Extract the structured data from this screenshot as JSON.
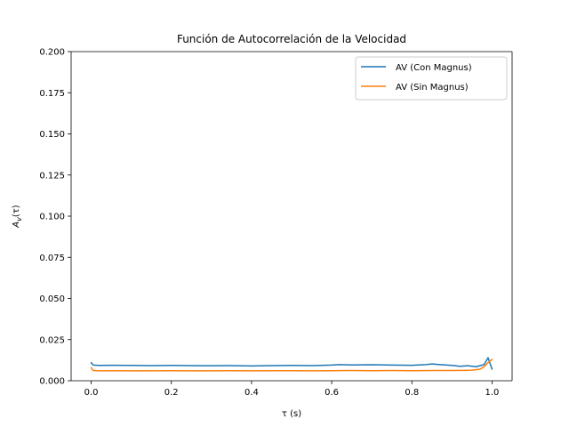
{
  "chart_data": {
    "type": "line",
    "title": "Función de Autocorrelación de la Velocidad",
    "xlabel": "τ (s)",
    "ylabel_main": "A",
    "ylabel_sub": "v",
    "ylabel_arg": "(τ)",
    "xlim": [
      -0.05,
      1.05
    ],
    "ylim": [
      0.0,
      0.2
    ],
    "xticks": [
      0.0,
      0.2,
      0.4,
      0.6,
      0.8,
      1.0
    ],
    "xtick_labels": [
      "0.0",
      "0.2",
      "0.4",
      "0.6",
      "0.8",
      "1.0"
    ],
    "yticks": [
      0.0,
      0.025,
      0.05,
      0.075,
      0.1,
      0.125,
      0.15,
      0.175,
      0.2
    ],
    "ytick_labels": [
      "0.000",
      "0.025",
      "0.050",
      "0.075",
      "0.100",
      "0.125",
      "0.150",
      "0.175",
      "0.200"
    ],
    "grid": false,
    "legend_position": "top-right",
    "series": [
      {
        "name": "AV (Con Magnus)",
        "color": "#1f77b4",
        "x": [
          0.0,
          0.005,
          0.02,
          0.05,
          0.1,
          0.15,
          0.2,
          0.25,
          0.3,
          0.35,
          0.4,
          0.45,
          0.5,
          0.55,
          0.6,
          0.62,
          0.65,
          0.7,
          0.75,
          0.8,
          0.83,
          0.85,
          0.87,
          0.9,
          0.92,
          0.94,
          0.96,
          0.98,
          0.99,
          1.0
        ],
        "y": [
          0.011,
          0.0095,
          0.0093,
          0.0094,
          0.0093,
          0.0092,
          0.0093,
          0.0092,
          0.0091,
          0.0092,
          0.009,
          0.0092,
          0.0093,
          0.0092,
          0.0095,
          0.0098,
          0.0096,
          0.0097,
          0.0095,
          0.0094,
          0.0097,
          0.0102,
          0.0098,
          0.0093,
          0.0088,
          0.0091,
          0.0085,
          0.0098,
          0.014,
          0.007
        ]
      },
      {
        "name": "AV (Sin Magnus)",
        "color": "#ff7f0e",
        "x": [
          0.0,
          0.005,
          0.02,
          0.05,
          0.1,
          0.15,
          0.2,
          0.25,
          0.3,
          0.35,
          0.4,
          0.45,
          0.5,
          0.55,
          0.6,
          0.65,
          0.7,
          0.75,
          0.8,
          0.85,
          0.9,
          0.93,
          0.95,
          0.97,
          0.98,
          0.99,
          1.0
        ],
        "y": [
          0.008,
          0.0062,
          0.006,
          0.0061,
          0.006,
          0.006,
          0.0061,
          0.006,
          0.006,
          0.0061,
          0.006,
          0.0061,
          0.0061,
          0.006,
          0.0061,
          0.0062,
          0.0061,
          0.0062,
          0.0061,
          0.0062,
          0.0062,
          0.0063,
          0.0064,
          0.007,
          0.0085,
          0.011,
          0.013
        ]
      }
    ]
  }
}
